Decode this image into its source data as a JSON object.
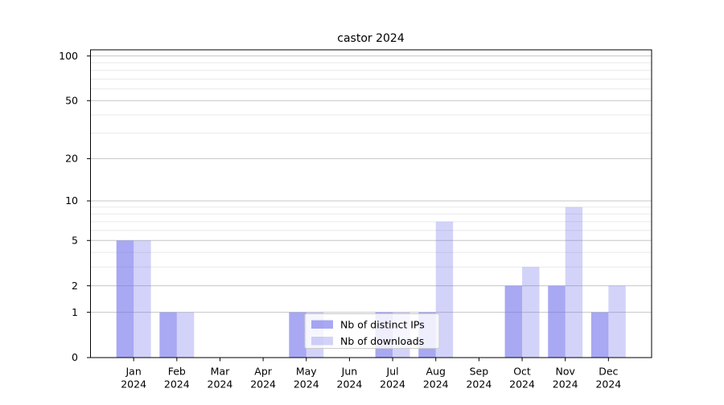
{
  "chart_data": {
    "type": "bar",
    "title": "castor 2024",
    "categories": [
      "Jan",
      "Feb",
      "Mar",
      "Apr",
      "May",
      "Jun",
      "Jul",
      "Aug",
      "Sep",
      "Oct",
      "Nov",
      "Dec"
    ],
    "category_year": "2024",
    "series": [
      {
        "name": "Nb of distinct IPs",
        "values": [
          5,
          1,
          0,
          0,
          1,
          0,
          1,
          1,
          0,
          2,
          2,
          1
        ],
        "swatch_color": "rgba(110,110,235,0.6)"
      },
      {
        "name": "Nb of downloads",
        "values": [
          5,
          1,
          0,
          0,
          1,
          0,
          1,
          7,
          0,
          3,
          9,
          2
        ],
        "swatch_color": "rgba(110,110,235,0.3)"
      }
    ],
    "bar_base_color": "#6e6eeb",
    "bar_alphas": [
      0.6,
      0.3
    ],
    "yscale": "log1p",
    "ylim": [
      0,
      110
    ],
    "y_major_ticks": [
      0,
      1,
      2,
      5,
      10,
      20,
      50,
      100
    ],
    "y_minor_ticks": [
      3,
      4,
      6,
      7,
      8,
      9,
      30,
      40,
      60,
      70,
      80,
      90
    ],
    "grid": true,
    "legend_position": "lower center",
    "colors": {
      "major_grid": "#c6c6c6",
      "minor_grid": "#e9e9e9",
      "axis": "#000000",
      "text": "#000000",
      "legend_border": "#cccccc",
      "legend_bg": "rgba(255,255,255,0.8)"
    }
  }
}
